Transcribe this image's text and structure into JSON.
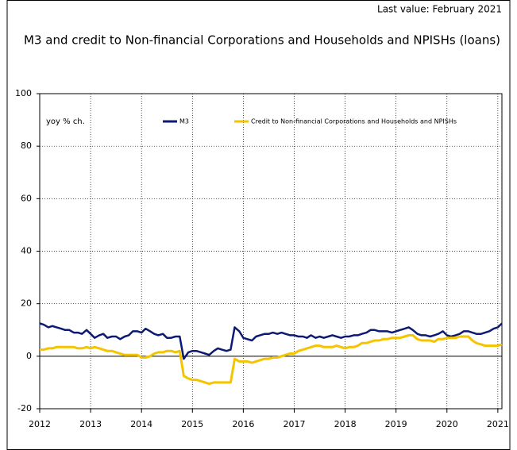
{
  "chart_data": {
    "type": "line",
    "title": "M3 and credit to Non-financial Corporations and Households and NPISHs (loans)",
    "subtitle": "Last value: February 2021",
    "y_label": "yoy % ch.",
    "x": [
      2012.0,
      2012.08,
      2012.17,
      2012.25,
      2012.33,
      2012.42,
      2012.5,
      2012.58,
      2012.67,
      2012.75,
      2012.83,
      2012.92,
      2013.0,
      2013.08,
      2013.17,
      2013.25,
      2013.33,
      2013.42,
      2013.5,
      2013.58,
      2013.67,
      2013.75,
      2013.83,
      2013.92,
      2014.0,
      2014.08,
      2014.17,
      2014.25,
      2014.33,
      2014.42,
      2014.5,
      2014.58,
      2014.67,
      2014.75,
      2014.83,
      2014.92,
      2015.0,
      2015.08,
      2015.17,
      2015.25,
      2015.33,
      2015.42,
      2015.5,
      2015.58,
      2015.67,
      2015.75,
      2015.83,
      2015.92,
      2016.0,
      2016.08,
      2016.17,
      2016.25,
      2016.33,
      2016.42,
      2016.5,
      2016.58,
      2016.67,
      2016.75,
      2016.83,
      2016.92,
      2017.0,
      2017.08,
      2017.17,
      2017.25,
      2017.33,
      2017.42,
      2017.5,
      2017.58,
      2017.67,
      2017.75,
      2017.83,
      2017.92,
      2018.0,
      2018.08,
      2018.17,
      2018.25,
      2018.33,
      2018.42,
      2018.5,
      2018.58,
      2018.67,
      2018.75,
      2018.83,
      2018.92,
      2019.0,
      2019.08,
      2019.17,
      2019.25,
      2019.33,
      2019.42,
      2019.5,
      2019.58,
      2019.67,
      2019.75,
      2019.83,
      2019.92,
      2020.0,
      2020.08,
      2020.17,
      2020.25,
      2020.33,
      2020.42,
      2020.5,
      2020.58,
      2020.67,
      2020.75,
      2020.83,
      2020.92,
      2021.0,
      2021.08
    ],
    "series": [
      {
        "name": "M3",
        "color": "#0d1a73",
        "values": [
          12.5,
          12,
          11,
          11.5,
          11,
          10.5,
          10,
          10,
          9,
          9,
          8.5,
          10,
          8.5,
          7,
          8,
          8.5,
          7,
          7.5,
          7.5,
          6.5,
          7.5,
          8,
          9.5,
          9.5,
          9,
          10.5,
          9.5,
          8.5,
          8,
          8.5,
          7,
          7,
          7.5,
          7.5,
          -1,
          1.5,
          2,
          2,
          1.5,
          1,
          0.5,
          2,
          3,
          2.5,
          2,
          2.5,
          11,
          9.5,
          7,
          6.5,
          6,
          7.5,
          8,
          8.5,
          8.5,
          9,
          8.5,
          9,
          8.5,
          8,
          8,
          7.5,
          7.5,
          7,
          8,
          7,
          7.5,
          7,
          7.5,
          8,
          7.5,
          7,
          7.5,
          7.5,
          8,
          8,
          8.5,
          9,
          10,
          10,
          9.5,
          9.5,
          9.5,
          9,
          9.5,
          10,
          10.5,
          11,
          10,
          8.5,
          8,
          8,
          7.5,
          8,
          8.5,
          9.5,
          8,
          7.5,
          8,
          8.5,
          9.5,
          9.5,
          9,
          8.5,
          8.5,
          9,
          9.5,
          10.5,
          11,
          12.5
        ]
      },
      {
        "name": "Credit to Non-financial Corporations and Households and NPISHs",
        "color": "#f5c400",
        "values": [
          2.5,
          2.5,
          3,
          3,
          3.5,
          3.5,
          3.5,
          3.5,
          3.5,
          3,
          3,
          3.5,
          3,
          3.5,
          3,
          2.5,
          2,
          2,
          1.5,
          1,
          0.5,
          0.5,
          0.5,
          0.5,
          -0.5,
          -0.5,
          0,
          1,
          1.5,
          1.5,
          2,
          2,
          1.5,
          2,
          -7.5,
          -8.5,
          -9,
          -9,
          -9.5,
          -10,
          -10.5,
          -10,
          -10,
          -10,
          -10,
          -10,
          -1,
          -2,
          -2,
          -2,
          -2.5,
          -2,
          -1.5,
          -1,
          -1,
          -0.5,
          -0.5,
          0,
          0.5,
          1,
          1,
          2,
          2.5,
          3,
          3.5,
          4,
          4,
          3.5,
          3.5,
          3.5,
          4,
          3.5,
          3,
          3.5,
          3.5,
          4,
          5,
          5,
          5.5,
          6,
          6,
          6.5,
          6.5,
          7,
          7,
          7,
          7.5,
          8,
          8,
          6.5,
          6,
          6,
          6,
          5.5,
          6.5,
          6.5,
          7,
          7,
          7,
          7.5,
          7.5,
          7.5,
          6,
          5,
          4.5,
          4,
          4,
          4,
          4,
          4.5
        ]
      }
    ],
    "xlim": [
      2012,
      2021.08
    ],
    "xticks": [
      2012,
      2013,
      2014,
      2015,
      2016,
      2017,
      2018,
      2019,
      2020,
      2021
    ],
    "ylim": [
      -20,
      100
    ],
    "yticks": [
      -20,
      0,
      20,
      40,
      60,
      80,
      100
    ],
    "grid": true
  }
}
